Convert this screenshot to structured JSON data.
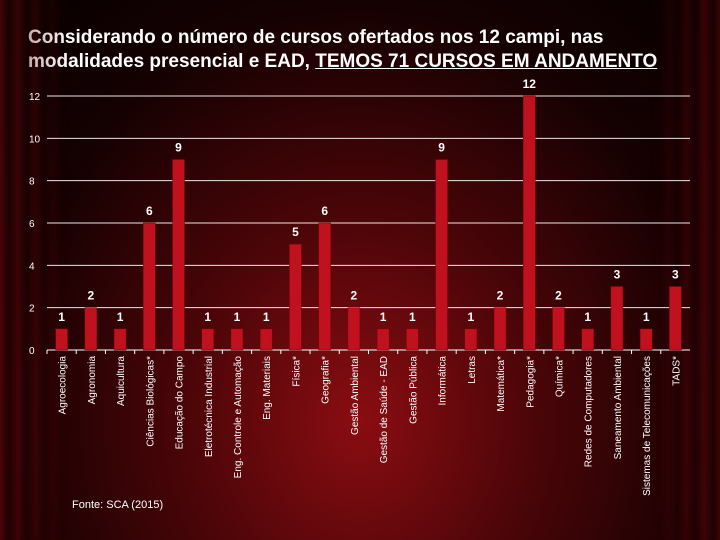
{
  "title_main": "Considerando o número de cursos ofertados nos 12 campi, nas modalidades presencial e EAD, ",
  "title_highlight": "TEMOS 71 CURSOS EM ANDAMENTO",
  "source": "Fonte: SCA (2015)",
  "colors": {
    "bar": "#c0121e",
    "bar_edge": "#7a0008",
    "axis": "#ffffff",
    "grid": "#ffffff",
    "text": "#ffffff"
  },
  "chart_data": {
    "type": "bar",
    "title": "",
    "xlabel": "",
    "ylabel": "",
    "ylim": [
      0,
      12
    ],
    "yticks": [
      0,
      2,
      4,
      6,
      8,
      10,
      12
    ],
    "grid": true,
    "categories": [
      "Agroecologia",
      "Agronomia",
      "Aquicultura",
      "Ciências Biológicas*",
      "Educação do Campo",
      "Eletrotécnica Industrial",
      "Eng. Controle e Automação",
      "Eng. Materiais",
      "Física*",
      "Geografia*",
      "Gestão Ambiental",
      "Gestão de Saúde - EAD",
      "Gestão Pública",
      "Informática",
      "Letras",
      "Matemática*",
      "Pedagogia*",
      "Química*",
      "Redes de Computadores",
      "Saneamento Ambiental",
      "Sistemas de Telecomunicações",
      "TADS*"
    ],
    "values": [
      1,
      2,
      1,
      6,
      9,
      1,
      1,
      1,
      5,
      6,
      2,
      1,
      1,
      9,
      1,
      2,
      12,
      2,
      1,
      3,
      1,
      3
    ]
  }
}
